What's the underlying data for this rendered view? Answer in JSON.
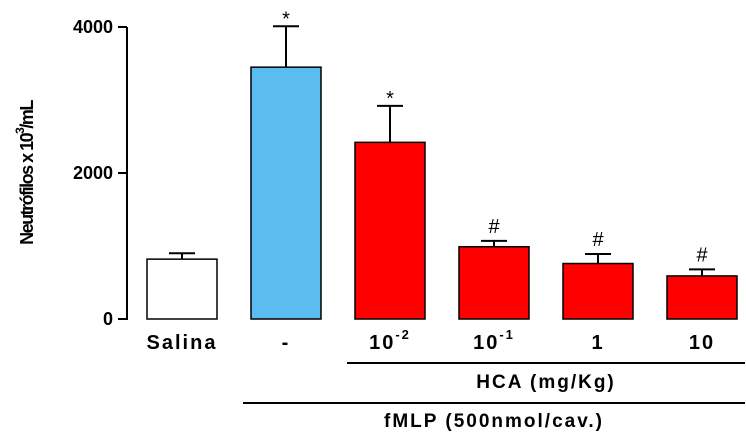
{
  "chart_data": {
    "type": "bar",
    "ylabel_main": "Neutrófilos x 10",
    "ylabel_sup": "3",
    "ylabel_tail": "/mL",
    "ylim": [
      0,
      4000
    ],
    "yticks": [
      "0",
      "2000",
      "4000"
    ],
    "categories": [
      {
        "label": "Salina",
        "sup": ""
      },
      {
        "label": "-",
        "sup": ""
      },
      {
        "label": "10",
        "sup": "-2"
      },
      {
        "label": "10",
        "sup": "-1"
      },
      {
        "label": "1",
        "sup": ""
      },
      {
        "label": "10",
        "sup": ""
      }
    ],
    "values": [
      820,
      3450,
      2420,
      990,
      760,
      590
    ],
    "errors": [
      80,
      560,
      500,
      80,
      130,
      90
    ],
    "annotations": [
      "",
      "*",
      "*",
      "#",
      "#",
      "#"
    ],
    "colors": [
      "#ffffff",
      "#5bbcf0",
      "#ff0000",
      "#ff0000",
      "#ff0000",
      "#ff0000"
    ],
    "groups": [
      {
        "label": "HCA (mg/Kg)",
        "from": 2,
        "to": 5
      },
      {
        "label": "fMLP (500nmol/cav.)",
        "from": 1,
        "to": 5
      }
    ]
  }
}
